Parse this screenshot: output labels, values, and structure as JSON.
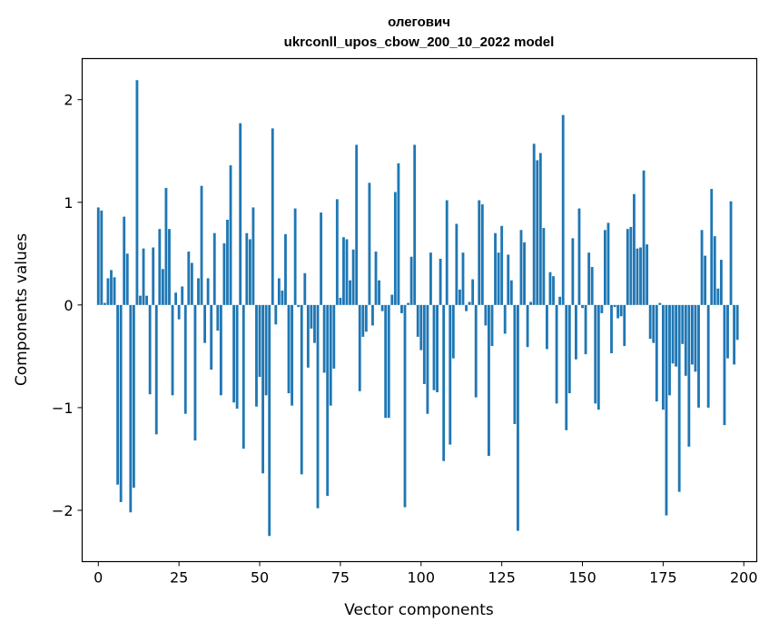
{
  "chart_data": {
    "type": "bar",
    "title": "олегович",
    "subtitle": "ukrconll_upos_cbow_200_10_2022 model",
    "xlabel": "Vector components",
    "ylabel": "Components values",
    "xlim": [
      -5,
      204
    ],
    "ylim": [
      -2.5,
      2.4
    ],
    "x_ticks": [
      0,
      25,
      50,
      75,
      100,
      125,
      150,
      175,
      200
    ],
    "y_ticks": [
      -2,
      -1,
      0,
      1,
      2
    ],
    "x_tick_labels": [
      "0",
      "25",
      "50",
      "75",
      "100",
      "125",
      "150",
      "175",
      "200"
    ],
    "y_tick_labels": [
      "−2",
      "−1",
      "0",
      "1",
      "2"
    ],
    "grid": false,
    "legend": "none",
    "bar_color": "#1f77b4",
    "values": [
      0.95,
      0.92,
      0.02,
      0.26,
      0.34,
      0.27,
      -1.75,
      -1.92,
      0.86,
      0.5,
      -2.02,
      -1.78,
      2.19,
      0.09,
      0.55,
      0.09,
      -0.87,
      0.56,
      -1.26,
      0.74,
      0.35,
      1.14,
      0.74,
      -0.88,
      0.12,
      -0.14,
      0.18,
      -1.06,
      0.52,
      0.41,
      -1.32,
      0.26,
      1.16,
      -0.37,
      0.26,
      -0.63,
      0.7,
      -0.25,
      -0.88,
      0.6,
      0.83,
      1.36,
      -0.95,
      -1.01,
      1.77,
      -1.4,
      0.7,
      0.64,
      0.95,
      -0.99,
      -0.7,
      -1.64,
      -0.88,
      -2.25,
      1.72,
      -0.19,
      0.26,
      0.14,
      0.69,
      -0.86,
      -0.98,
      0.94,
      -0.02,
      -1.65,
      0.31,
      -0.61,
      -0.23,
      -0.37,
      -1.98,
      0.9,
      -0.66,
      -1.86,
      -0.98,
      -0.62,
      1.03,
      0.07,
      0.66,
      0.64,
      0.24,
      0.54,
      1.56,
      -0.84,
      -0.31,
      -0.26,
      1.19,
      -0.2,
      0.52,
      0.24,
      -0.06,
      -1.1,
      -1.1,
      0.1,
      1.1,
      1.38,
      -0.08,
      -1.97,
      0.02,
      0.47,
      1.56,
      -0.31,
      -0.44,
      -0.77,
      -1.06,
      0.51,
      -0.83,
      -0.85,
      0.45,
      -1.52,
      1.02,
      -1.36,
      -0.52,
      0.79,
      0.15,
      0.51,
      -0.06,
      0.03,
      0.25,
      -0.9,
      1.02,
      0.98,
      -0.2,
      -1.47,
      -0.4,
      0.7,
      0.51,
      0.77,
      -0.28,
      0.49,
      0.24,
      -1.16,
      -2.2,
      0.73,
      0.61,
      -0.41,
      0.03,
      1.57,
      1.41,
      1.48,
      0.75,
      -0.43,
      0.32,
      0.28,
      -0.96,
      0.08,
      1.85,
      -1.22,
      -0.86,
      0.65,
      -0.53,
      0.94,
      -0.03,
      -0.48,
      0.51,
      0.37,
      -0.96,
      -1.02,
      -0.08,
      0.73,
      0.8,
      -0.47,
      -0.02,
      -0.13,
      -0.11,
      -0.4,
      0.74,
      0.76,
      1.08,
      0.55,
      0.56,
      1.31,
      0.59,
      -0.33,
      -0.37,
      -0.94,
      0.02,
      -1.02,
      -2.05,
      -0.88,
      -0.57,
      -0.6,
      -1.82,
      -0.38,
      -0.69,
      -1.38,
      -0.58,
      -0.65,
      -1.0,
      0.73,
      0.48,
      -1.0,
      1.13,
      0.67,
      0.16,
      0.44,
      -1.17,
      -0.52,
      1.01,
      -0.58,
      -0.34,
      0.0
    ]
  }
}
